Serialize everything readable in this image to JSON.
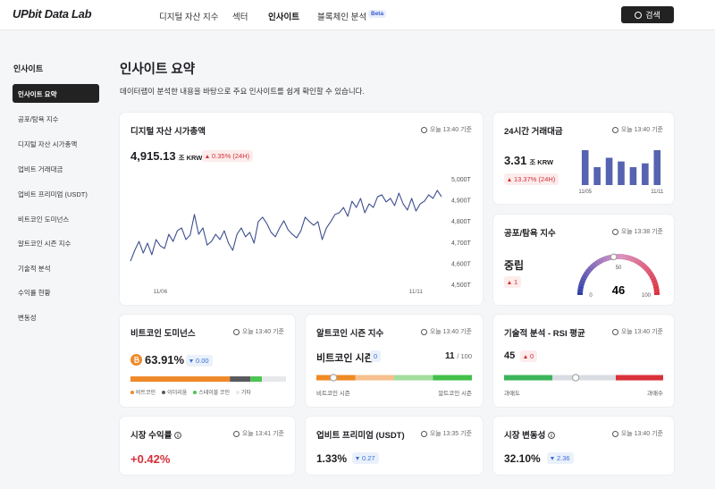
{
  "header": {
    "logo": "UPbit Data Lab",
    "nav": [
      "디지털 자산 지수",
      "섹터",
      "인사이트",
      "블록체인 분석"
    ],
    "beta": "Beta",
    "search": "검색"
  },
  "sidebar": {
    "title": "인사이트",
    "items": [
      "인사이트 요약",
      "공포/탐욕 지수",
      "디지털 자산 시가총액",
      "업비트 거래대금",
      "업비트 프리미엄 (USDT)",
      "비트코인 도미넌스",
      "알트코인 시즌 지수",
      "기술적 분석",
      "수익률 현황",
      "변동성"
    ]
  },
  "page": {
    "title": "인사이트 요약",
    "description": "데이터랩이 분석한 내용을 바탕으로 주요 인사이트를 쉽게 확인할 수 있습니다."
  },
  "cards": {
    "market_cap": {
      "title": "디지털 자산 시가총액",
      "time": "오늘 13:40 기준",
      "value": "4,915.13",
      "unit": "조 KRW",
      "change": "0.35% (24H)",
      "chart": {
        "type": "line",
        "color": "#3d4f8f",
        "categories": [
          null,
          null,
          null,
          null,
          null,
          null,
          null,
          "11/06",
          null,
          null,
          null,
          null,
          null,
          null,
          null,
          null,
          null,
          null,
          null,
          null,
          null,
          null,
          null,
          null,
          null,
          null,
          null,
          null,
          null,
          null,
          null,
          null,
          null,
          null,
          null,
          null,
          null,
          null,
          null,
          null,
          null,
          null,
          null,
          null,
          null,
          null,
          null,
          null,
          null,
          null,
          null,
          null,
          null,
          null,
          null,
          null,
          null,
          null,
          null,
          null,
          null,
          null,
          null,
          null,
          null,
          null,
          null,
          "11/11",
          null,
          null,
          null,
          null,
          null,
          null
        ],
        "values": [
          4610,
          4661,
          4703,
          4648,
          4695,
          4640,
          4712,
          4682,
          4670,
          4737,
          4703,
          4754,
          4767,
          4712,
          4733,
          4831,
          4737,
          4767,
          4686,
          4703,
          4737,
          4712,
          4754,
          4695,
          4661,
          4737,
          4767,
          4725,
          4746,
          4695,
          4797,
          4818,
          4788,
          4746,
          4725,
          4767,
          4801,
          4758,
          4737,
          4720,
          4754,
          4818,
          4797,
          4780,
          4797,
          4712,
          4767,
          4797,
          4831,
          4839,
          4864,
          4822,
          4894,
          4864,
          4907,
          4839,
          4881,
          4864,
          4915,
          4924,
          4890,
          4907,
          4873,
          4932,
          4881,
          4852,
          4907,
          4847,
          4881,
          4894,
          4924,
          4907,
          4945,
          4915
        ],
        "ylim": [
          4500,
          5000
        ],
        "yticks": [
          {
            "value": 4500,
            "label": "4,500T"
          },
          {
            "value": 4600,
            "label": "4,600T"
          },
          {
            "value": 4700,
            "label": "4,700T"
          },
          {
            "value": 4800,
            "label": "4,800T"
          },
          {
            "value": 4900,
            "label": "4,900T"
          },
          {
            "value": 5000,
            "label": "5,000T"
          }
        ]
      }
    },
    "volume": {
      "title": "24시간 거래대금",
      "time": "오늘 13:40 기준",
      "value": "3.31",
      "unit": "조 KRW",
      "change": "13.37% (24H)",
      "chart": {
        "type": "bar",
        "color": "#5563b0",
        "categories": [
          "11/05",
          null,
          null,
          null,
          null,
          null,
          "11/11"
        ],
        "values": [
          3.31,
          1.7,
          2.59,
          2.24,
          1.7,
          2.06,
          3.31
        ]
      }
    },
    "fear_greed": {
      "title": "공포/탐욕 지수",
      "time": "오늘 13:38 기준",
      "status": "중립",
      "change": "1",
      "gauge": {
        "type": "gauge",
        "value": 46,
        "lim": [
          0,
          100
        ],
        "ticks": [
          0,
          50,
          100
        ]
      }
    },
    "dominance": {
      "title": "비트코인 도미넌스",
      "time": "오늘 13:40 기준",
      "value": "63.91%",
      "change": "0.00",
      "segments": [
        {
          "name": "비트코인",
          "color": "#f0892a",
          "value": 63.91
        },
        {
          "name": "이더리움",
          "color": "#5a5a5e",
          "value": 13.2
        },
        {
          "name": "스테이블 코인",
          "color": "#4cc552",
          "value": 7.4
        },
        {
          "name": "기타",
          "color": "#e6e8ec",
          "value": 15.49
        }
      ]
    },
    "altcoin": {
      "title": "알트코인 시즌 지수",
      "time": "오늘 13:40 기준",
      "status": "비트코인 시즌",
      "change": "0",
      "value": 11,
      "total": "/ 100",
      "lim": [
        0,
        100
      ],
      "left": "비트코인 시즌",
      "right": "알트코인 시즌"
    },
    "rsi": {
      "title": "기술적 분석 - RSI 평균",
      "time": "오늘 13:40 기준",
      "value": 45,
      "change": "0",
      "lim": [
        0,
        100
      ],
      "left": "과매도",
      "right": "과매수"
    },
    "returns": {
      "title": "시장 수익률",
      "time": "오늘 13:41 기준",
      "value": "+0.42%"
    },
    "premium": {
      "title": "업비트 프리미엄 (USDT)",
      "time": "오늘 13:35 기준",
      "value": "1.33%",
      "change": "0.27"
    },
    "volatility": {
      "title": "시장 변동성",
      "time": "오늘 13:40 기준",
      "value": "32.10%",
      "change": "2.36"
    }
  }
}
